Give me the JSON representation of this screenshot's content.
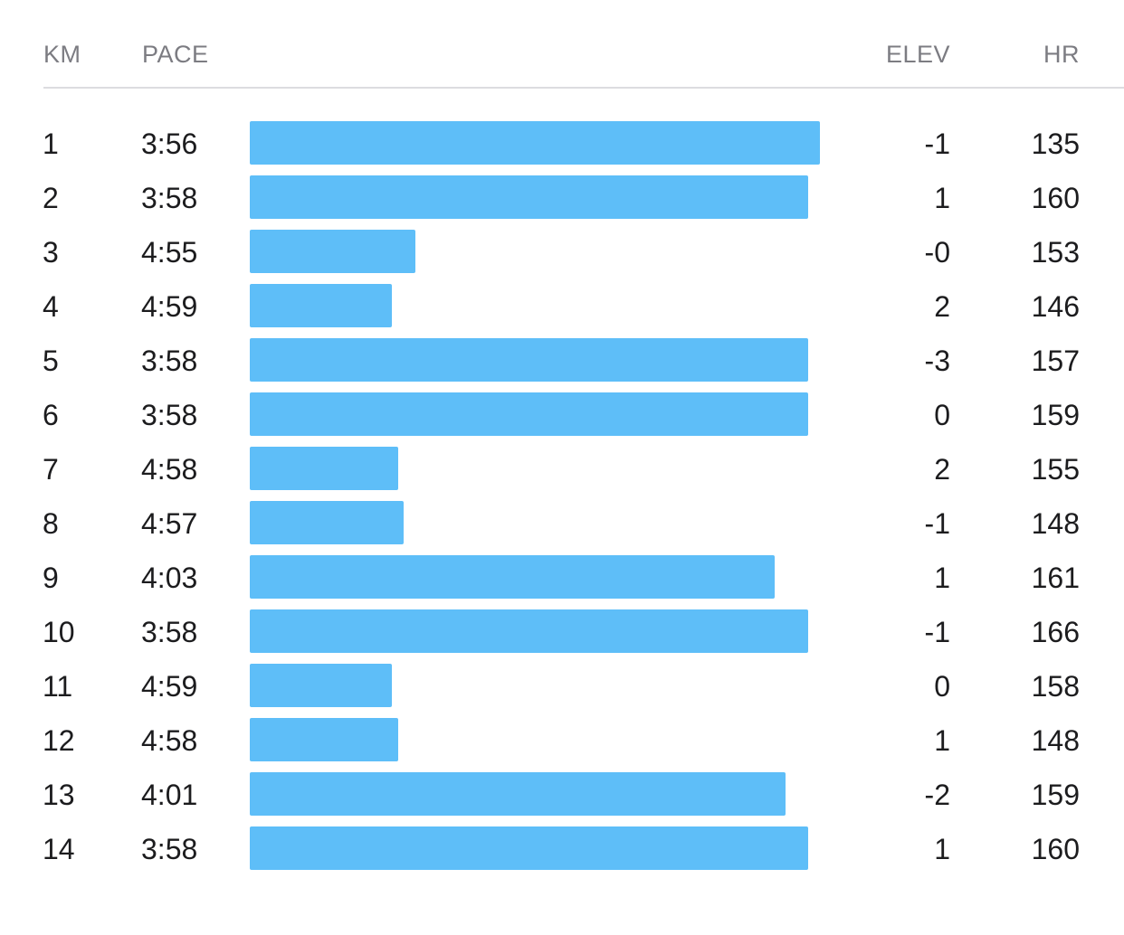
{
  "header": {
    "km": "KM",
    "pace": "PACE",
    "elev": "ELEV",
    "hr": "HR"
  },
  "colors": {
    "bar": "#5ebef8",
    "header_text": "#7c7c82",
    "divider": "#dcdce0"
  },
  "splits": [
    {
      "km": "1",
      "pace": "3:56",
      "elev": "-1",
      "hr": "135",
      "pace_bar_fraction": 1.0
    },
    {
      "km": "2",
      "pace": "3:58",
      "elev": "1",
      "hr": "160",
      "pace_bar_fraction": 0.979
    },
    {
      "km": "3",
      "pace": "4:55",
      "elev": "-0",
      "hr": "153",
      "pace_bar_fraction": 0.29
    },
    {
      "km": "4",
      "pace": "4:59",
      "elev": "2",
      "hr": "146",
      "pace_bar_fraction": 0.249
    },
    {
      "km": "5",
      "pace": "3:58",
      "elev": "-3",
      "hr": "157",
      "pace_bar_fraction": 0.979
    },
    {
      "km": "6",
      "pace": "3:58",
      "elev": "0",
      "hr": "159",
      "pace_bar_fraction": 0.979
    },
    {
      "km": "7",
      "pace": "4:58",
      "elev": "2",
      "hr": "155",
      "pace_bar_fraction": 0.26
    },
    {
      "km": "8",
      "pace": "4:57",
      "elev": "-1",
      "hr": "148",
      "pace_bar_fraction": 0.27
    },
    {
      "km": "9",
      "pace": "4:03",
      "elev": "1",
      "hr": "161",
      "pace_bar_fraction": 0.921
    },
    {
      "km": "10",
      "pace": "3:58",
      "elev": "-1",
      "hr": "166",
      "pace_bar_fraction": 0.979
    },
    {
      "km": "11",
      "pace": "4:59",
      "elev": "0",
      "hr": "158",
      "pace_bar_fraction": 0.249
    },
    {
      "km": "12",
      "pace": "4:58",
      "elev": "1",
      "hr": "148",
      "pace_bar_fraction": 0.26
    },
    {
      "km": "13",
      "pace": "4:01",
      "elev": "-2",
      "hr": "159",
      "pace_bar_fraction": 0.94
    },
    {
      "km": "14",
      "pace": "3:58",
      "elev": "1",
      "hr": "160",
      "pace_bar_fraction": 0.979
    }
  ]
}
